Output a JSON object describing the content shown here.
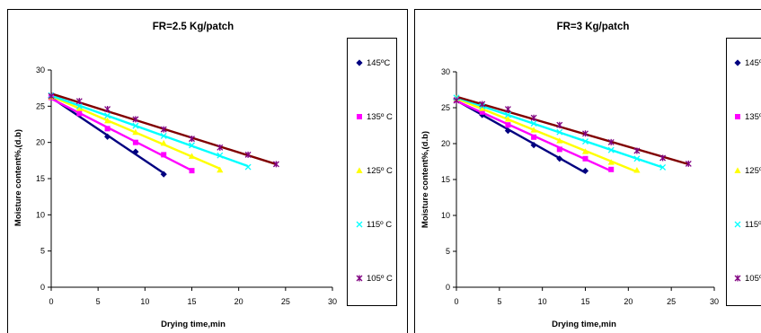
{
  "chart_data": [
    {
      "type": "scatter",
      "title": "FR=2.5 Kg/patch",
      "xlabel": "Drying time,min",
      "ylabel": "Moisture content%,(d.b)",
      "xlim": [
        0,
        30
      ],
      "ylim": [
        0,
        30
      ],
      "xticks": [
        "0",
        "5",
        "10",
        "15",
        "20",
        "25",
        "30"
      ],
      "yticks": [
        "0",
        "5",
        "10",
        "15",
        "20",
        "25",
        "30"
      ],
      "grid": false,
      "legend_position": "right",
      "trendlines": true,
      "series": [
        {
          "name": "145ºC",
          "color": "#000080",
          "marker": "diamond",
          "x": [
            0,
            6,
            9,
            12
          ],
          "y": [
            26.2,
            20.8,
            18.7,
            15.6
          ]
        },
        {
          "name": "135º C",
          "color": "#ff00ff",
          "marker": "square",
          "x": [
            0,
            3,
            6,
            9,
            12,
            15
          ],
          "y": [
            26.2,
            24.0,
            21.9,
            20.0,
            18.3,
            16.1
          ]
        },
        {
          "name": "125º C",
          "color": "#ffff00",
          "marker": "triangle",
          "x": [
            0,
            3,
            6,
            9,
            12,
            15,
            18
          ],
          "y": [
            26.3,
            24.7,
            23.0,
            21.4,
            19.9,
            18.1,
            16.2
          ]
        },
        {
          "name": "115º C",
          "color": "#00ffff",
          "marker": "x",
          "x": [
            0,
            3,
            6,
            9,
            12,
            15,
            18,
            21
          ],
          "y": [
            26.5,
            25.0,
            23.7,
            22.3,
            20.9,
            19.6,
            18.2,
            16.6
          ]
        },
        {
          "name": "105º C",
          "color": "#800080",
          "marker": "star",
          "x": [
            0,
            3,
            6,
            9,
            12,
            15,
            18,
            21,
            24
          ],
          "y": [
            26.4,
            25.7,
            24.6,
            23.2,
            21.8,
            20.5,
            19.3,
            18.3,
            17.0
          ]
        }
      ],
      "trend_colors": [
        "#000080",
        "#ff00ff",
        "#ffff00",
        "#00ffff",
        "#800000"
      ]
    },
    {
      "type": "scatter",
      "title": "FR=3 Kg/patch",
      "xlabel": "Drying time,min",
      "ylabel": "Moisture content%,(d.b)",
      "xlim": [
        0,
        30
      ],
      "ylim": [
        0,
        30
      ],
      "xticks": [
        "0",
        "5",
        "10",
        "15",
        "20",
        "25",
        "30"
      ],
      "yticks": [
        "0",
        "5",
        "10",
        "15",
        "20",
        "25",
        "30"
      ],
      "grid": false,
      "legend_position": "right",
      "trendlines": true,
      "series": [
        {
          "name": "145ºC",
          "color": "#000080",
          "marker": "diamond",
          "x": [
            0,
            3,
            6,
            9,
            12,
            15
          ],
          "y": [
            26.2,
            24.0,
            21.8,
            19.8,
            17.9,
            16.2
          ]
        },
        {
          "name": "135º C",
          "color": "#ff00ff",
          "marker": "square",
          "x": [
            0,
            3,
            6,
            9,
            12,
            15,
            18
          ],
          "y": [
            26.1,
            24.4,
            22.6,
            20.9,
            19.2,
            17.9,
            16.4
          ]
        },
        {
          "name": "125º C",
          "color": "#ffff00",
          "marker": "triangle",
          "x": [
            0,
            3,
            6,
            9,
            12,
            15,
            18,
            21
          ],
          "y": [
            26.3,
            24.9,
            23.4,
            21.9,
            20.4,
            18.9,
            17.4,
            16.3
          ]
        },
        {
          "name": "115º C",
          "color": "#00ffff",
          "marker": "x",
          "x": [
            0,
            3,
            6,
            9,
            12,
            15,
            18,
            21,
            24
          ],
          "y": [
            26.4,
            25.2,
            24.0,
            22.8,
            21.6,
            20.3,
            19.1,
            17.9,
            16.7
          ]
        },
        {
          "name": "105º C",
          "color": "#800080",
          "marker": "star",
          "x": [
            0,
            3,
            6,
            9,
            12,
            15,
            18,
            21,
            24,
            27
          ],
          "y": [
            26.0,
            25.5,
            24.8,
            23.6,
            22.6,
            21.4,
            20.2,
            19.0,
            18.0,
            17.2
          ]
        }
      ],
      "trend_colors": [
        "#000080",
        "#ff00ff",
        "#ffff00",
        "#00ffff",
        "#800000"
      ]
    }
  ]
}
